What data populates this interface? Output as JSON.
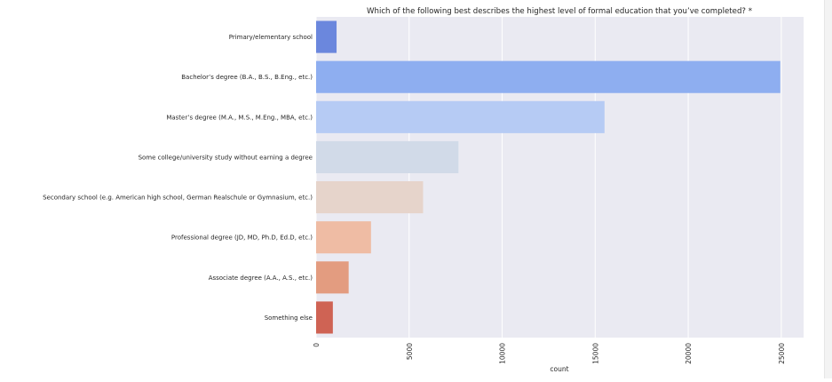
{
  "chart_data": {
    "type": "bar",
    "orientation": "horizontal",
    "title": "Which of the following best describes the highest level of formal education that you’ve completed? *",
    "xlabel": "count",
    "ylabel": "",
    "xlim": [
      0,
      26200
    ],
    "xticks": [
      0,
      5000,
      10000,
      15000,
      20000,
      25000
    ],
    "xtick_labels": [
      "0",
      "5000",
      "10000",
      "15000",
      "20000",
      "25000"
    ],
    "grid": true,
    "categories": [
      "Primary/elementary school",
      "Bachelor’s degree (B.A., B.S., B.Eng., etc.)",
      "Master’s degree (M.A., M.S., M.Eng., MBA, etc.)",
      "Some college/university study without earning a degree",
      "Secondary school (e.g. American high school, German Realschule or Gymnasium, etc.)",
      "Professional degree (JD, MD, Ph.D, Ed.D, etc.)",
      "Associate degree (A.A., A.S., etc.)",
      "Something else"
    ],
    "values": [
      1100,
      24950,
      15500,
      7650,
      5750,
      2950,
      1750,
      900
    ],
    "colors": [
      "#6b87dd",
      "#8eaef0",
      "#b6cbf4",
      "#d1dae8",
      "#e6d4cb",
      "#efbca4",
      "#e39c80",
      "#cf6354"
    ],
    "background": "#eaeaf2",
    "grid_color": "#ffffff"
  }
}
